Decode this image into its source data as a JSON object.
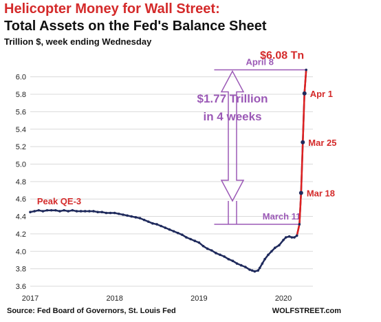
{
  "chart_data": {
    "type": "line",
    "title": "Helicopter Money for Wall Street:",
    "subtitle": "Total Assets on the Fed's Balance Sheet",
    "ylabel": "Trillion $, week ending Wednesday",
    "source": "Source: Fed Board of Governors, St. Louis Fed",
    "brand": "WOLFSTREET.com",
    "xlim": [
      2017.0,
      2020.35
    ],
    "ylim": [
      3.6,
      6.1
    ],
    "yticks": [
      "3.6",
      "3.8",
      "4.0",
      "4.2",
      "4.4",
      "4.6",
      "4.8",
      "5.0",
      "5.2",
      "5.4",
      "5.6",
      "5.8",
      "6.0"
    ],
    "xticks": [
      {
        "label": "2017",
        "value": 2017.0
      },
      {
        "label": "2018",
        "value": 2018.0
      },
      {
        "label": "2019",
        "value": 2019.0
      },
      {
        "label": "2020",
        "value": 2020.0
      }
    ],
    "grid": "horizontal",
    "series": [
      {
        "color": "#1f2a5c",
        "points": [
          [
            2017.0,
            4.45
          ],
          [
            2017.05,
            4.46
          ],
          [
            2017.1,
            4.47
          ],
          [
            2017.15,
            4.46
          ],
          [
            2017.2,
            4.47
          ],
          [
            2017.25,
            4.47
          ],
          [
            2017.3,
            4.47
          ],
          [
            2017.35,
            4.46
          ],
          [
            2017.4,
            4.47
          ],
          [
            2017.45,
            4.46
          ],
          [
            2017.5,
            4.47
          ],
          [
            2017.55,
            4.46
          ],
          [
            2017.6,
            4.46
          ],
          [
            2017.65,
            4.46
          ],
          [
            2017.7,
            4.46
          ],
          [
            2017.75,
            4.46
          ],
          [
            2017.8,
            4.45
          ],
          [
            2017.85,
            4.45
          ],
          [
            2017.9,
            4.44
          ],
          [
            2017.95,
            4.44
          ],
          [
            2018.0,
            4.44
          ],
          [
            2018.05,
            4.43
          ],
          [
            2018.1,
            4.42
          ],
          [
            2018.15,
            4.41
          ],
          [
            2018.2,
            4.4
          ],
          [
            2018.25,
            4.39
          ],
          [
            2018.3,
            4.38
          ],
          [
            2018.35,
            4.36
          ],
          [
            2018.4,
            4.34
          ],
          [
            2018.45,
            4.32
          ],
          [
            2018.5,
            4.31
          ],
          [
            2018.55,
            4.29
          ],
          [
            2018.6,
            4.27
          ],
          [
            2018.65,
            4.25
          ],
          [
            2018.7,
            4.23
          ],
          [
            2018.75,
            4.21
          ],
          [
            2018.8,
            4.19
          ],
          [
            2018.85,
            4.16
          ],
          [
            2018.9,
            4.14
          ],
          [
            2018.95,
            4.12
          ],
          [
            2019.0,
            4.1
          ],
          [
            2019.05,
            4.06
          ],
          [
            2019.1,
            4.03
          ],
          [
            2019.15,
            4.01
          ],
          [
            2019.2,
            3.98
          ],
          [
            2019.25,
            3.96
          ],
          [
            2019.3,
            3.94
          ],
          [
            2019.35,
            3.91
          ],
          [
            2019.4,
            3.89
          ],
          [
            2019.45,
            3.86
          ],
          [
            2019.5,
            3.84
          ],
          [
            2019.55,
            3.82
          ],
          [
            2019.6,
            3.79
          ],
          [
            2019.63,
            3.78
          ],
          [
            2019.66,
            3.77
          ],
          [
            2019.7,
            3.78
          ],
          [
            2019.72,
            3.81
          ],
          [
            2019.75,
            3.86
          ],
          [
            2019.78,
            3.91
          ],
          [
            2019.82,
            3.96
          ],
          [
            2019.86,
            4.0
          ],
          [
            2019.9,
            4.04
          ],
          [
            2019.95,
            4.07
          ],
          [
            2020.0,
            4.13
          ],
          [
            2020.03,
            4.16
          ],
          [
            2020.07,
            4.17
          ],
          [
            2020.1,
            4.16
          ],
          [
            2020.13,
            4.16
          ],
          [
            2020.16,
            4.18
          ],
          [
            2020.19,
            4.31
          ],
          [
            2020.21,
            4.67
          ],
          [
            2020.23,
            5.25
          ],
          [
            2020.25,
            5.81
          ],
          [
            2020.27,
            6.08
          ]
        ]
      }
    ],
    "highlight_range": [
      2020.16,
      2020.27
    ],
    "markers": [
      {
        "label": "Mar 18",
        "x": 2020.21,
        "y": 4.67
      },
      {
        "label": "Mar 25",
        "x": 2020.23,
        "y": 5.25
      },
      {
        "label": "Apr 1",
        "x": 2020.25,
        "y": 5.81
      }
    ],
    "annotations": {
      "peak_label": "Peak QE-3",
      "top_value": "$6.08 Tn",
      "april_label": "April 8",
      "march_label": "March 11",
      "change_line1": "$1.77 Trillion",
      "change_line2": "in 4 weeks",
      "april_level": 6.08,
      "march_level": 4.31
    },
    "colors": {
      "line": "#1f2a5c",
      "highlight": "#e02020",
      "annotation": "#9b59b6",
      "label": "#d42a2a",
      "grid": "#d9d9d9"
    }
  }
}
